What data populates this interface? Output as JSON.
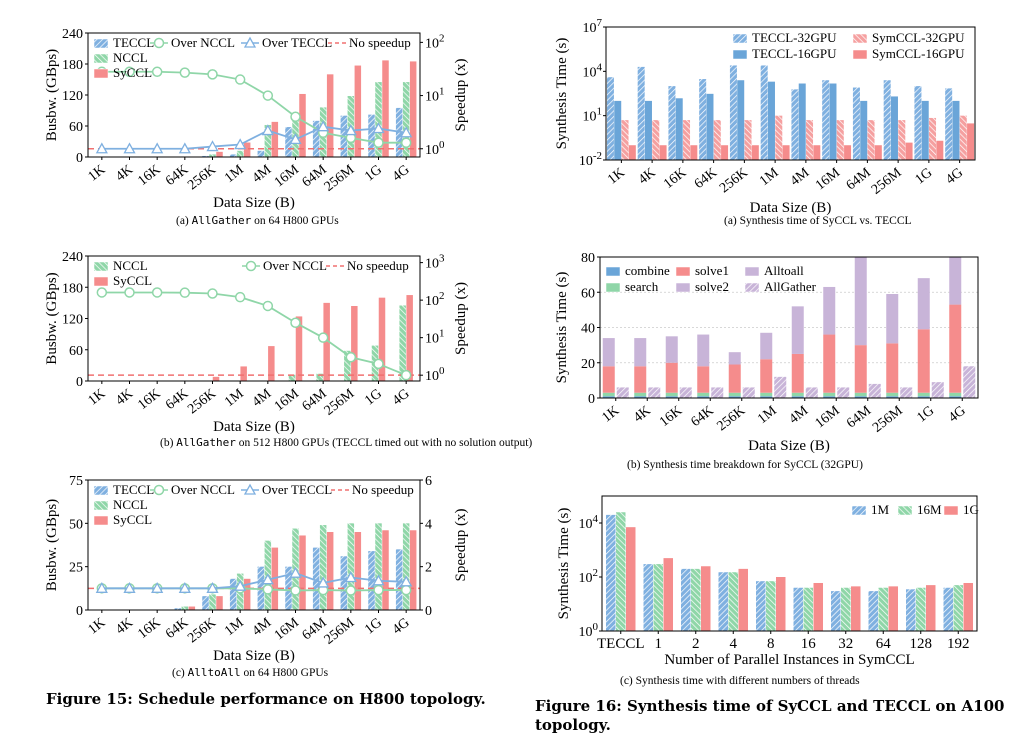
{
  "figure15": {
    "caption": "Figure 15: Schedule performance on H800 topology.",
    "panels": [
      {
        "id": "a",
        "caption_prefix": "(a) ",
        "caption_code": "AllGather",
        "caption_rest": " on 64 H800 GPUs",
        "xlabel": "Data Size (B)",
        "ylabel_left": "Busbw. (GBps)",
        "ylabel_right": "Speedup (x)",
        "categories": [
          "1K",
          "4K",
          "16K",
          "64K",
          "256K",
          "1M",
          "4M",
          "16M",
          "64M",
          "256M",
          "1G",
          "4G"
        ],
        "left_ticks": [
          "0",
          "60",
          "120",
          "180",
          "240"
        ],
        "left_lim": [
          0,
          240
        ],
        "right_scale": "log",
        "right_ticks": [
          "10^0",
          "10^1",
          "10^2"
        ],
        "right_lim": [
          0.7,
          150
        ],
        "legend": [
          "TECCL",
          "NCCL",
          "SyCCL",
          "Over NCCL",
          "Over TECCL",
          "No speedup"
        ],
        "bars": [
          {
            "name": "TECCL",
            "values": [
              0,
              0,
              0,
              0,
              2,
              5,
              12,
              58,
              70,
              80,
              82,
              95
            ]
          },
          {
            "name": "NCCL",
            "values": [
              0,
              0,
              0,
              0,
              5,
              12,
              62,
              70,
              96,
              118,
              145,
              145
            ]
          },
          {
            "name": "SyCCL",
            "values": [
              0,
              0,
              0,
              0,
              10,
              28,
              68,
              122,
              160,
              177,
              187,
              185
            ]
          }
        ],
        "lines": [
          {
            "name": "Over NCCL",
            "values": [
              28,
              28,
              28,
              27,
              25,
              20,
              10,
              4,
              2,
              1.6,
              1.3,
              1.3
            ]
          },
          {
            "name": "Over TECCL",
            "values": [
              1,
              1,
              1,
              1,
              1.1,
              1.2,
              2.2,
              1.5,
              2.6,
              2.2,
              2.4,
              2.0
            ]
          }
        ],
        "baseline": 1
      },
      {
        "id": "b",
        "caption_prefix": "(b) ",
        "caption_code": "AllGather",
        "caption_rest": " on 512 H800 GPUs (TECCL timed out with no solution output)",
        "xlabel": "Data Size (B)",
        "ylabel_left": "Busbw. (GBps)",
        "ylabel_right": "Speedup (x)",
        "categories": [
          "1K",
          "4K",
          "16K",
          "64K",
          "256K",
          "1M",
          "4M",
          "16M",
          "64M",
          "256M",
          "1G",
          "4G"
        ],
        "left_ticks": [
          "0",
          "60",
          "120",
          "180",
          "240"
        ],
        "left_lim": [
          0,
          240
        ],
        "right_scale": "log",
        "right_ticks": [
          "10^0",
          "10^1",
          "10^2",
          "10^3"
        ],
        "right_lim": [
          0.7,
          1500
        ],
        "legend": [
          "NCCL",
          "SyCCL",
          "Over NCCL",
          "No speedup"
        ],
        "bars": [
          {
            "name": "NCCL",
            "values": [
              0,
              0,
              0,
              0,
              0,
              0,
              0,
              12,
              14,
              58,
              68,
              145
            ]
          },
          {
            "name": "SyCCL",
            "values": [
              0,
              0,
              0,
              0,
              8,
              28,
              67,
              124,
              150,
              144,
              160,
              165
            ]
          }
        ],
        "lines": [
          {
            "name": "Over NCCL",
            "values": [
              160,
              160,
              160,
              158,
              150,
              120,
              70,
              25,
              10,
              3,
              2,
              1
            ]
          }
        ],
        "baseline": 1
      },
      {
        "id": "c",
        "caption_prefix": "(c) ",
        "caption_code": "AlltoAll",
        "caption_rest": " on 64 H800 GPUs",
        "xlabel": "Data Size (B)",
        "ylabel_left": "Busbw. (GBps)",
        "ylabel_right": "Speedup (x)",
        "categories": [
          "1K",
          "4K",
          "16K",
          "64K",
          "256K",
          "1M",
          "4M",
          "16M",
          "64M",
          "256M",
          "1G",
          "4G"
        ],
        "left_ticks": [
          "0",
          "25",
          "50",
          "75"
        ],
        "left_lim": [
          0,
          75
        ],
        "right_scale": "linear",
        "right_ticks": [
          "0",
          "2",
          "4",
          "6"
        ],
        "right_lim": [
          0,
          6
        ],
        "legend": [
          "TECCL",
          "NCCL",
          "SyCCL",
          "Over NCCL",
          "Over TECCL",
          "No speedup"
        ],
        "bars": [
          {
            "name": "TECCL",
            "values": [
              0,
              0,
              0,
              1,
              8,
              18,
              25,
              25,
              36,
              31,
              34,
              35
            ]
          },
          {
            "name": "NCCL",
            "values": [
              0,
              0,
              0,
              2,
              9,
              21,
              40,
              47,
              49,
              50,
              50,
              50
            ]
          },
          {
            "name": "SyCCL",
            "values": [
              0,
              0,
              0,
              2,
              8,
              18,
              36,
              43,
              45,
              45,
              46,
              46
            ]
          }
        ],
        "lines": [
          {
            "name": "Over NCCL",
            "values": [
              1,
              1,
              1,
              1,
              1,
              1.0,
              0.95,
              0.9,
              0.92,
              0.9,
              0.92,
              0.92
            ]
          },
          {
            "name": "Over TECCL",
            "values": [
              1,
              1,
              1,
              1,
              1,
              1.1,
              1.4,
              1.7,
              1.25,
              1.5,
              1.35,
              1.3
            ]
          }
        ],
        "baseline": 1
      }
    ]
  },
  "figure16": {
    "caption_line1": "Figure 16: Synthesis time of SyCCL and TECCL on A100",
    "caption_line2": "topology.",
    "panels": [
      {
        "id": "a",
        "caption": "(a)  Synthesis time of SyCCL vs. TECCL",
        "xlabel": "Data Size (B)",
        "ylabel": "Synthesis Time (s)",
        "categories": [
          "1K",
          "4K",
          "16K",
          "64K",
          "256K",
          "1M",
          "4M",
          "16M",
          "64M",
          "256M",
          "1G",
          "4G"
        ],
        "y_scale": "log",
        "y_ticks": [
          "10^-2",
          "10^1",
          "10^4",
          "10^7"
        ],
        "y_lim": [
          0.01,
          10000000
        ],
        "legend": [
          "TECCL-32GPU",
          "TECCL-16GPU",
          "SymCCL-32GPU",
          "SymCCL-16GPU"
        ],
        "bars": [
          {
            "name": "TECCL-32GPU",
            "values": [
              4000,
              20000,
              1000,
              3000,
              25000,
              25000,
              600,
              2500,
              800,
              2500,
              1000,
              700
            ]
          },
          {
            "name": "TECCL-16GPU",
            "values": [
              100,
              100,
              150,
              300,
              2500,
              2000,
              1500,
              1500,
              100,
              200,
              100,
              100
            ]
          },
          {
            "name": "SymCCL-32GPU",
            "values": [
              5,
              5,
              5,
              5,
              5,
              10,
              5,
              5,
              5,
              5,
              7,
              10
            ]
          },
          {
            "name": "SymCCL-16GPU",
            "values": [
              0.1,
              0.1,
              0.1,
              0.1,
              0.1,
              0.1,
              0.1,
              0.1,
              0.1,
              0.15,
              0.2,
              3
            ]
          }
        ]
      },
      {
        "id": "b",
        "caption": "(b)  Synthesis time breakdown for SyCCL (32GPU)",
        "xlabel": "Data Size (B)",
        "ylabel": "Synthesis Time (s)",
        "categories": [
          "1K",
          "4K",
          "16K",
          "64K",
          "256K",
          "1M",
          "4M",
          "16M",
          "64M",
          "256M",
          "1G",
          "4G"
        ],
        "y_ticks": [
          "0",
          "20",
          "40",
          "60",
          "80"
        ],
        "y_lim": [
          0,
          80
        ],
        "legend": [
          "combine",
          "search",
          "solve1",
          "solve2",
          "Alltoall",
          "AllGather"
        ],
        "stacks_alltoall": [
          {
            "name": "combine",
            "values": [
              1,
              1,
              1,
              1,
              1,
              1,
              1,
              1,
              1,
              1,
              1,
              1
            ]
          },
          {
            "name": "search",
            "values": [
              2,
              2,
              2,
              2,
              2,
              2,
              2,
              2,
              2,
              2,
              2,
              2
            ]
          },
          {
            "name": "solve1",
            "values": [
              15,
              15,
              17,
              15,
              16,
              19,
              22,
              33,
              27,
              28,
              36,
              50
            ]
          },
          {
            "name": "solve2",
            "values": [
              16,
              16,
              15,
              18,
              7,
              15,
              27,
              27,
              50,
              28,
              29,
              27
            ]
          }
        ],
        "allgather_totals": [
          6,
          6,
          6,
          6,
          6,
          12,
          6,
          6,
          8,
          6,
          9,
          18
        ]
      },
      {
        "id": "c",
        "caption": "(c)  Synthesis time with different numbers of threads",
        "xlabel": "Number of Parallel Instances in SymCCL",
        "ylabel": "Synthesis Time (s)",
        "categories": [
          "TECCL",
          "1",
          "2",
          "4",
          "8",
          "16",
          "32",
          "64",
          "128",
          "192"
        ],
        "y_scale": "log",
        "y_ticks": [
          "10^0",
          "10^2",
          "10^4"
        ],
        "y_lim": [
          1,
          100000
        ],
        "legend": [
          "1M",
          "16M",
          "1G"
        ],
        "bars": [
          {
            "name": "1M",
            "values": [
              20000,
              300,
              200,
              150,
              70,
              40,
              30,
              30,
              35,
              40
            ]
          },
          {
            "name": "16M",
            "values": [
              25000,
              300,
              200,
              150,
              70,
              40,
              40,
              40,
              40,
              50
            ]
          },
          {
            "name": "1G",
            "values": [
              7000,
              500,
              250,
              200,
              100,
              60,
              45,
              45,
              50,
              60
            ]
          }
        ]
      }
    ]
  }
}
